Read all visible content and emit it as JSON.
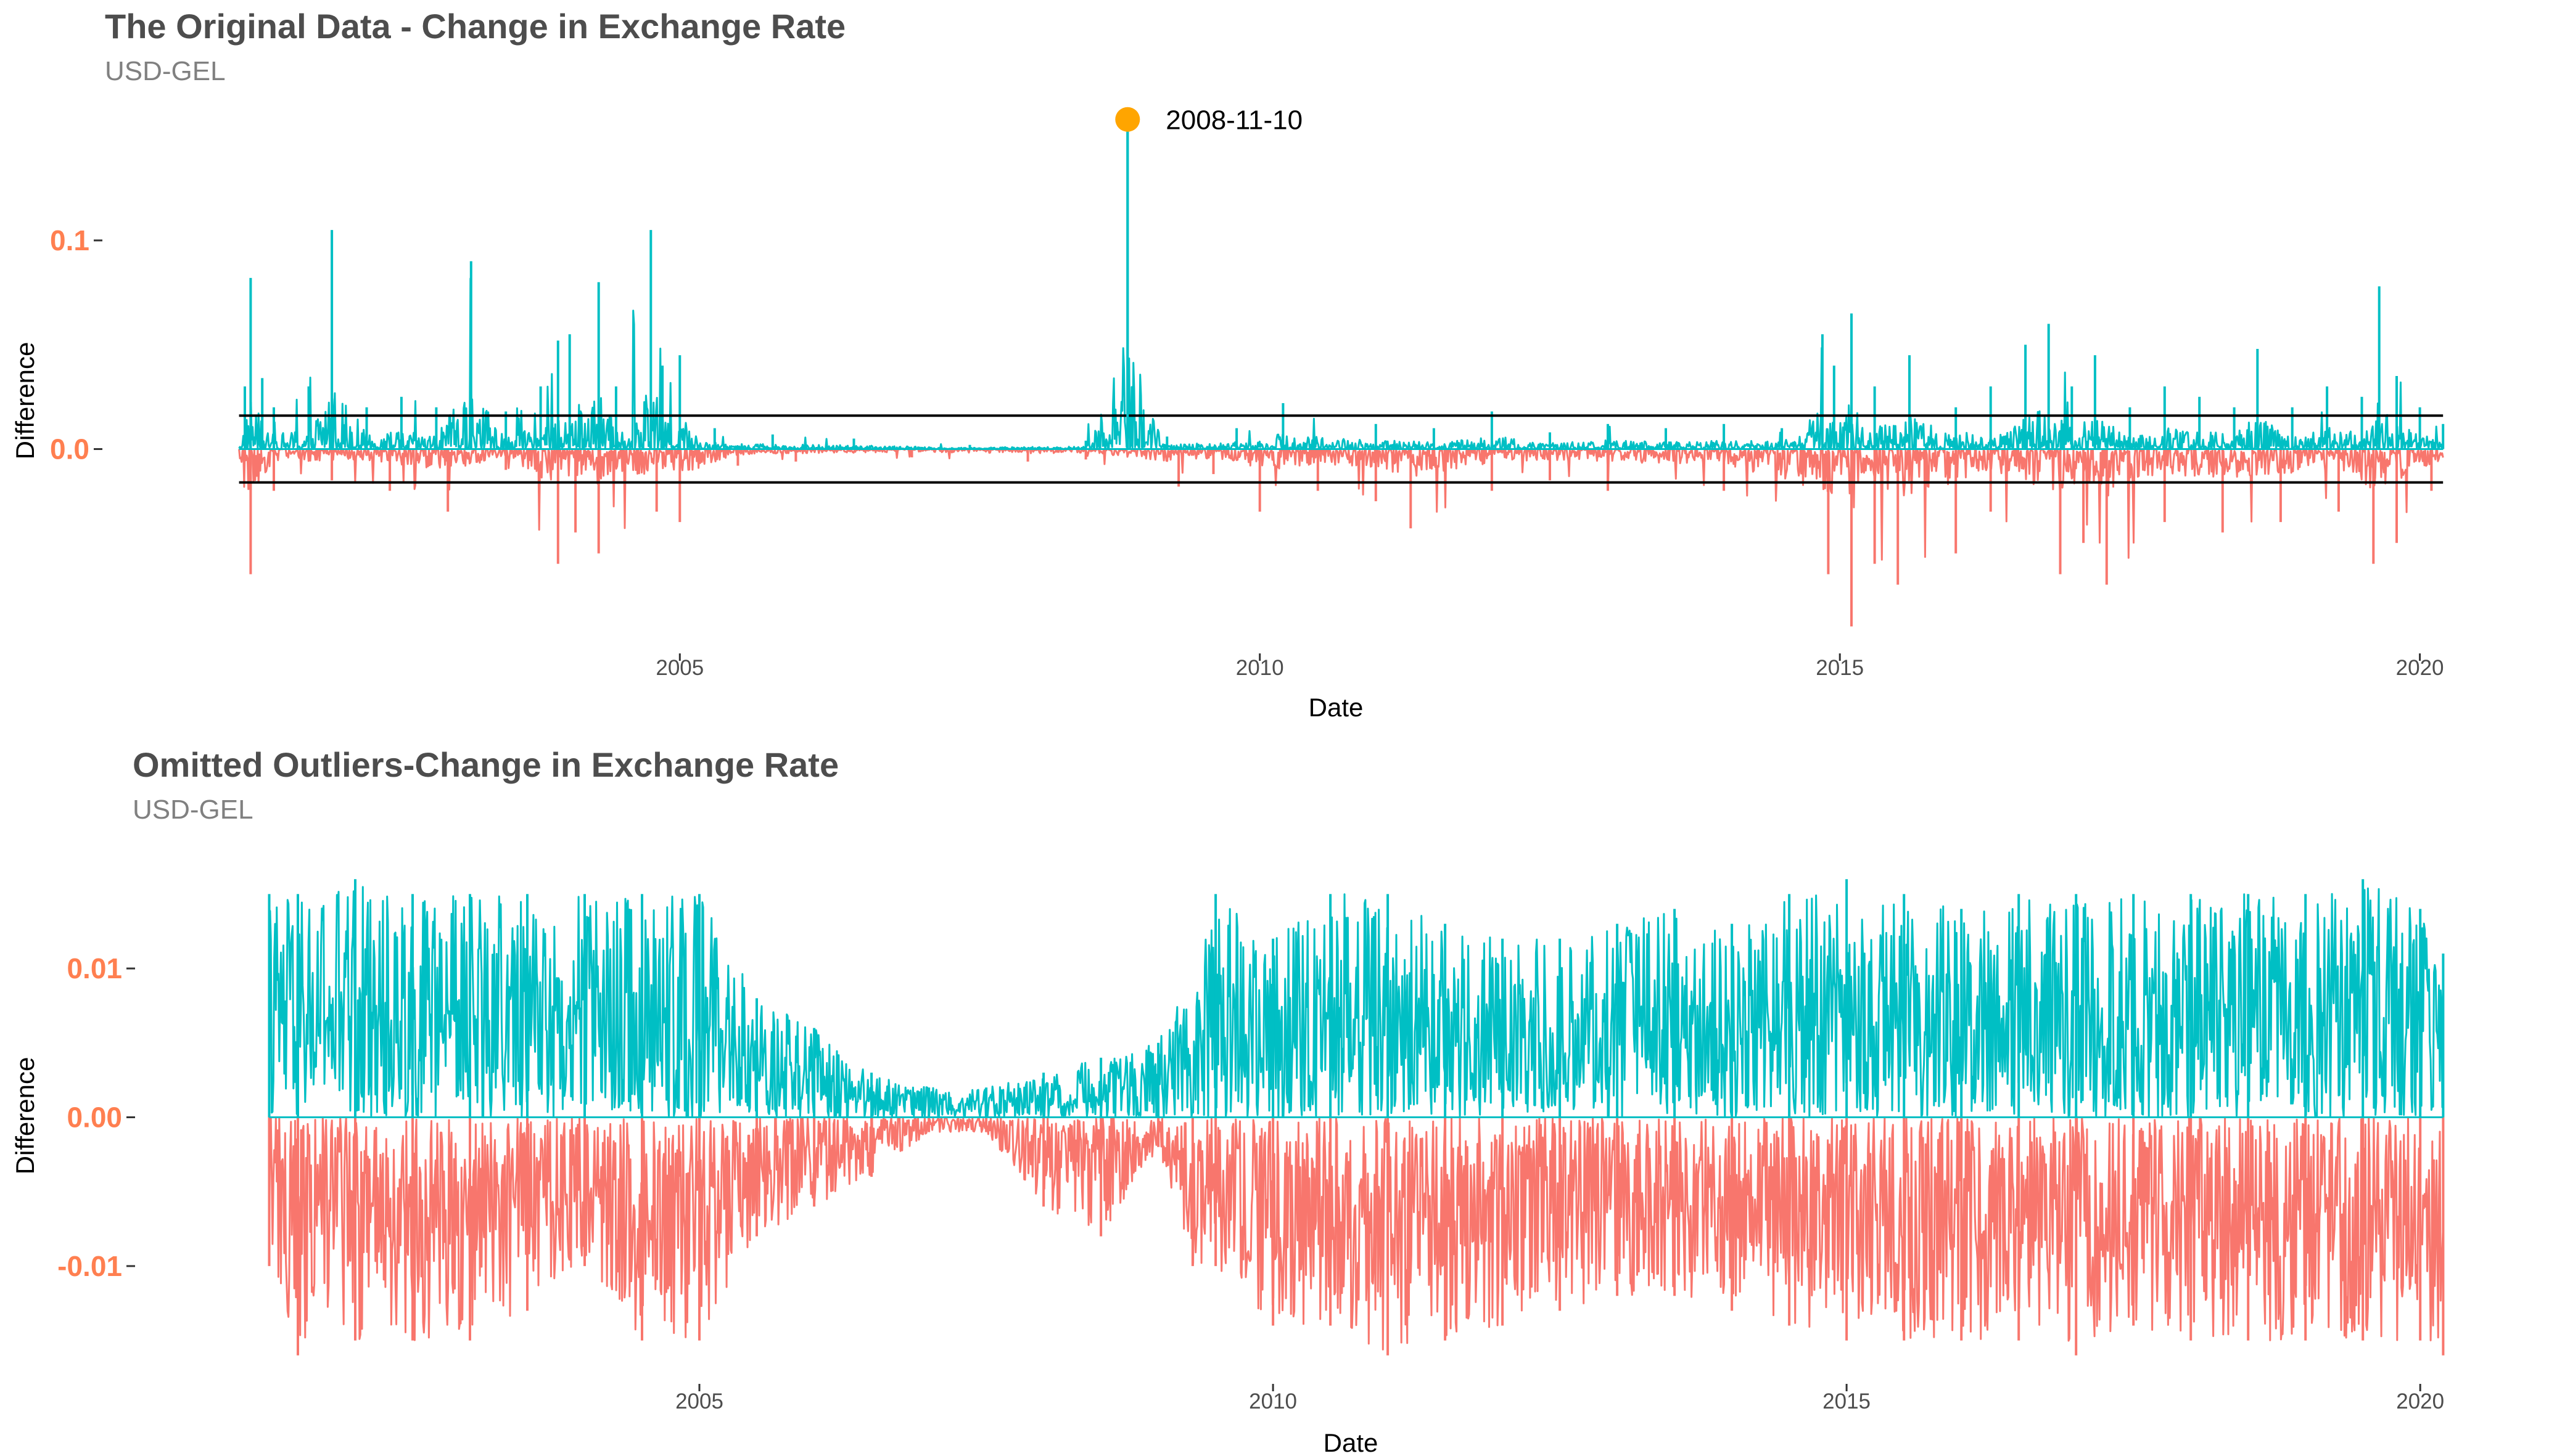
{
  "chart_data": [
    {
      "type": "line",
      "title": "The Original Data - Change in Exchange Rate",
      "subtitle": "USD-GEL",
      "xlabel": "Date",
      "ylabel": "Difference",
      "xlim": [
        2001.0,
        2020.3
      ],
      "ylim": [
        -0.095,
        0.165
      ],
      "x_ticks": [
        2005,
        2010,
        2015,
        2020
      ],
      "y_ticks": [
        {
          "value": 0.1,
          "label": "0.1"
        },
        {
          "value": 0.0,
          "label": "0.0"
        }
      ],
      "threshold_lines": [
        0.016,
        -0.016
      ],
      "grid": false,
      "colors": {
        "positive": "#00BFC4",
        "negative": "#F8766D",
        "highlight": "#FFA500",
        "tick_label": "#FF7F50",
        "threshold": "#000000"
      },
      "highlight_point": {
        "x": 2008.86,
        "y": 0.158,
        "label": "2008-11-10"
      },
      "series": [
        {
          "sign": "positive",
          "x": [
            2001.25,
            2001.3,
            2001.4,
            2001.5,
            2001.8,
            2002.0,
            2002.3,
            2002.6,
            2002.9,
            2003.2,
            2003.5,
            2003.8,
            2003.95,
            2004.05,
            2004.3,
            2004.45,
            2004.75,
            2004.85,
            2005.0,
            2005.3,
            2005.8,
            2006.5,
            2007.5,
            2008.5,
            2008.86,
            2009.2,
            2009.8,
            2010.2,
            2011.0,
            2011.5,
            2012.0,
            2012.5,
            2013.0,
            2013.5,
            2014.0,
            2014.5,
            2014.85,
            2014.95,
            2015.1,
            2015.3,
            2015.6,
            2016.0,
            2016.3,
            2016.6,
            2016.8,
            2017.0,
            2017.2,
            2017.5,
            2017.8,
            2018.1,
            2018.4,
            2018.6,
            2018.9,
            2019.2,
            2019.5,
            2019.65,
            2019.8,
            2020.0,
            2020.2
          ],
          "y": [
            0.03,
            0.082,
            0.034,
            0.02,
            0.03,
            0.105,
            0.02,
            0.025,
            0.02,
            0.09,
            0.018,
            0.03,
            0.052,
            0.055,
            0.08,
            0.03,
            0.105,
            0.04,
            0.045,
            0.01,
            0.007,
            0.005,
            0.002,
            0.004,
            0.158,
            0.006,
            0.01,
            0.022,
            0.012,
            0.01,
            0.018,
            0.008,
            0.012,
            0.01,
            0.012,
            0.01,
            0.055,
            0.04,
            0.065,
            0.03,
            0.045,
            0.02,
            0.03,
            0.05,
            0.06,
            0.03,
            0.045,
            0.02,
            0.03,
            0.025,
            0.02,
            0.048,
            0.02,
            0.03,
            0.025,
            0.078,
            0.035,
            0.02,
            0.012
          ]
        },
        {
          "sign": "negative",
          "x": [
            2001.3,
            2001.5,
            2002.0,
            2002.5,
            2003.0,
            2003.5,
            2003.95,
            2004.1,
            2004.3,
            2004.8,
            2005.0,
            2005.5,
            2006.0,
            2007.0,
            2008.0,
            2008.5,
            2009.3,
            2009.6,
            2010.0,
            2010.5,
            2011.0,
            2011.3,
            2012.0,
            2012.5,
            2013.0,
            2014.0,
            2014.9,
            2015.1,
            2015.3,
            2015.5,
            2016.0,
            2016.3,
            2016.9,
            2017.1,
            2017.3,
            2017.8,
            2018.3,
            2018.8,
            2019.3,
            2019.6,
            2019.8,
            2020.1
          ],
          "y": [
            -0.06,
            -0.02,
            -0.015,
            -0.02,
            -0.03,
            -0.01,
            -0.055,
            -0.04,
            -0.05,
            -0.03,
            -0.035,
            -0.008,
            -0.006,
            -0.004,
            -0.006,
            -0.005,
            -0.018,
            -0.012,
            -0.03,
            -0.02,
            -0.025,
            -0.038,
            -0.02,
            -0.015,
            -0.02,
            -0.02,
            -0.06,
            -0.085,
            -0.055,
            -0.065,
            -0.05,
            -0.03,
            -0.06,
            -0.045,
            -0.065,
            -0.035,
            -0.04,
            -0.035,
            -0.03,
            -0.055,
            -0.045,
            -0.02
          ]
        }
      ]
    },
    {
      "type": "line",
      "title": "Omitted Outliers-Change in Exchange Rate",
      "subtitle": "USD-GEL",
      "xlabel": "Date",
      "ylabel": "Difference",
      "xlim": [
        2001.0,
        2020.3
      ],
      "ylim": [
        -0.0175,
        0.0175
      ],
      "x_ticks": [
        2005,
        2010,
        2015,
        2020
      ],
      "y_ticks": [
        {
          "value": 0.01,
          "label": "0.01"
        },
        {
          "value": 0.0,
          "label": "0.00"
        },
        {
          "value": -0.01,
          "label": "-0.01"
        }
      ],
      "grid": false,
      "colors": {
        "positive": "#00BFC4",
        "negative": "#F8766D",
        "tick_label": "#FF7F50"
      },
      "series": [
        {
          "sign": "positive",
          "x": [
            2001.25,
            2001.5,
            2002.0,
            2002.5,
            2003.0,
            2003.5,
            2004.0,
            2004.5,
            2005.0,
            2005.5,
            2006.0,
            2006.5,
            2007.0,
            2007.5,
            2008.0,
            2008.5,
            2009.0,
            2009.5,
            2010.0,
            2010.5,
            2011.0,
            2011.5,
            2012.0,
            2012.5,
            2013.0,
            2013.5,
            2014.0,
            2014.5,
            2015.0,
            2015.5,
            2016.0,
            2016.5,
            2017.0,
            2017.5,
            2018.0,
            2018.5,
            2019.0,
            2019.5,
            2020.0,
            2020.2
          ],
          "y": [
            0.015,
            0.015,
            0.016,
            0.015,
            0.015,
            0.015,
            0.015,
            0.015,
            0.015,
            0.008,
            0.006,
            0.003,
            0.002,
            0.002,
            0.003,
            0.004,
            0.005,
            0.015,
            0.012,
            0.015,
            0.015,
            0.013,
            0.012,
            0.012,
            0.013,
            0.014,
            0.013,
            0.015,
            0.016,
            0.015,
            0.014,
            0.015,
            0.015,
            0.015,
            0.015,
            0.015,
            0.015,
            0.016,
            0.014,
            0.011
          ]
        },
        {
          "sign": "negative",
          "x": [
            2001.25,
            2001.5,
            2002.0,
            2002.5,
            2003.0,
            2003.5,
            2004.0,
            2004.5,
            2005.0,
            2005.5,
            2006.0,
            2006.5,
            2007.0,
            2007.5,
            2008.0,
            2008.5,
            2009.0,
            2009.3,
            2009.5,
            2010.0,
            2010.5,
            2011.0,
            2011.5,
            2012.0,
            2012.5,
            2013.0,
            2013.5,
            2014.0,
            2014.5,
            2015.0,
            2015.5,
            2016.0,
            2016.5,
            2017.0,
            2017.5,
            2018.0,
            2018.5,
            2019.0,
            2019.5,
            2020.0,
            2020.2
          ],
          "y": [
            -0.01,
            -0.016,
            -0.015,
            -0.015,
            -0.015,
            -0.013,
            -0.01,
            -0.015,
            -0.015,
            -0.008,
            -0.006,
            -0.004,
            -0.001,
            -0.001,
            -0.006,
            -0.008,
            -0.002,
            -0.01,
            -0.01,
            -0.014,
            -0.014,
            -0.016,
            -0.015,
            -0.014,
            -0.013,
            -0.012,
            -0.012,
            -0.013,
            -0.014,
            -0.015,
            -0.015,
            -0.015,
            -0.015,
            -0.016,
            -0.014,
            -0.015,
            -0.015,
            -0.015,
            -0.015,
            -0.015,
            -0.016
          ]
        }
      ]
    }
  ]
}
